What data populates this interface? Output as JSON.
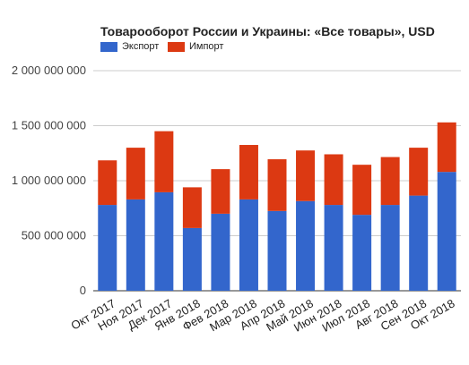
{
  "chart_data": {
    "type": "bar",
    "stacked": true,
    "title": "Товарооборот России и Украины: «Все товары», USD",
    "xlabel": "",
    "ylabel": "",
    "categories": [
      "Окт 2017",
      "Ноя 2017",
      "Дек 2017",
      "Янв 2018",
      "Фев 2018",
      "Мар 2018",
      "Апр 2018",
      "Май 2018",
      "Июн 2018",
      "Июл 2018",
      "Авг 2018",
      "Сен 2018",
      "Окт 2018"
    ],
    "series": [
      {
        "name": "Экспорт",
        "color": "#3366cc",
        "values": [
          780000000,
          830000000,
          895000000,
          570000000,
          700000000,
          830000000,
          725000000,
          815000000,
          780000000,
          690000000,
          780000000,
          865000000,
          1080000000
        ]
      },
      {
        "name": "Импорт",
        "color": "#dc3912",
        "values": [
          405000000,
          470000000,
          555000000,
          370000000,
          405000000,
          495000000,
          470000000,
          460000000,
          460000000,
          455000000,
          435000000,
          435000000,
          450000000
        ]
      }
    ],
    "ylim": [
      0,
      2000000000
    ],
    "y_ticks": [
      0,
      500000000,
      1000000000,
      1500000000,
      2000000000
    ],
    "y_tick_labels": [
      "0",
      "500 000 000",
      "1 000 000 000",
      "1 500 000 000",
      "2 000 000 000"
    ],
    "grid": true,
    "legend_position": "top-left"
  }
}
